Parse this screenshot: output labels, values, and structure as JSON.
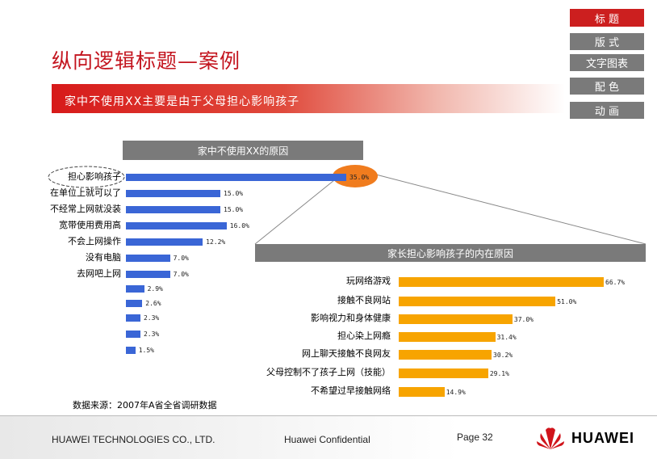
{
  "nav": [
    "标 题",
    "版 式",
    "文字图表",
    "配 色",
    "动 画"
  ],
  "title": "纵向逻辑标题—案例",
  "banner": "家中不使用XX主要是由于父母担心影响孩子",
  "chart_data": [
    {
      "type": "bar",
      "title": "家中不使用XX的原因",
      "categories": [
        "担心影响孩子",
        "在单位上就可以了",
        "不经常上网就没装",
        "宽带使用费用高",
        "不会上网操作",
        "没有电脑",
        "去网吧上网",
        "",
        "",
        "",
        "",
        ""
      ],
      "values": [
        35.0,
        15.0,
        15.0,
        16.0,
        12.2,
        7.0,
        7.0,
        2.9,
        2.6,
        2.3,
        2.3,
        1.5
      ],
      "value_labels": [
        "35.0%",
        "15.0%",
        "15.0%",
        "16.0%",
        "12.2%",
        "7.0%",
        "7.0%",
        "2.9%",
        "2.6%",
        "2.3%",
        "2.3%",
        "1.5%"
      ],
      "orientation": "horizontal",
      "highlight": "担心影响孩子"
    },
    {
      "type": "bar",
      "title": "家长担心影响孩子的内在原因",
      "categories": [
        "玩网络游戏",
        "接触不良网站",
        "影响视力和身体健康",
        "担心染上网瘾",
        "网上聊天接触不良网友",
        "父母控制不了孩子上网（技能）",
        "不希望过早接触网络"
      ],
      "values": [
        66.7,
        51.0,
        37.0,
        31.4,
        30.2,
        29.1,
        14.9
      ],
      "value_labels": [
        "66.7%",
        "51.0%",
        "37.0%",
        "31.4%",
        "30.2%",
        "29.1%",
        "14.9%"
      ],
      "orientation": "horizontal"
    }
  ],
  "footnote": "数据来源：2007年A省全省调研数据",
  "footer": {
    "company": "HUAWEI TECHNOLOGIES CO., LTD.",
    "confidential": "Huawei Confidential",
    "page": "Page 32",
    "logo_text": "HUAWEI"
  },
  "colors": {
    "accent": "#cc1f1f",
    "bar1": "#3a66d6",
    "bar2": "#f7a400",
    "highlight": "#f07c1e"
  }
}
